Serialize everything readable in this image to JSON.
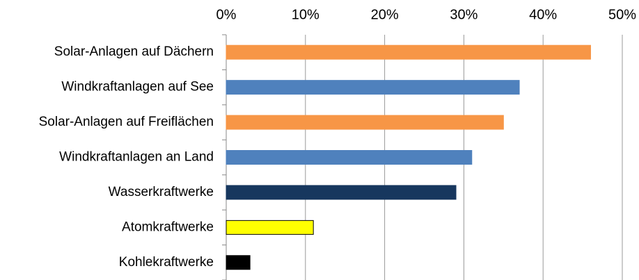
{
  "chart_data": {
    "type": "barh",
    "categories": [
      "Solar-Anlagen auf Dächern",
      "Windkraftanlagen auf See",
      "Solar-Anlagen auf Freiflächen",
      "Windkraftanlagen an Land",
      "Wasserkraftwerke",
      "Atomkraftwerke",
      "Kohlekraftwerke"
    ],
    "values": [
      46,
      37,
      35,
      31,
      29,
      11,
      3
    ],
    "colors": [
      "#f79646",
      "#4f81bd",
      "#f79646",
      "#4f81bd",
      "#17375e",
      "#ffff00",
      "#000000"
    ],
    "edgecolors": [
      "#f79646",
      "#4f81bd",
      "#f79646",
      "#4f81bd",
      "#17375e",
      "#000000",
      "#000000"
    ],
    "xlim": [
      0,
      50
    ],
    "xticks": [
      {
        "value": 0,
        "label": "0%"
      },
      {
        "value": 10,
        "label": "10%"
      },
      {
        "value": 20,
        "label": "20%"
      },
      {
        "value": 30,
        "label": "30%"
      },
      {
        "value": 40,
        "label": "40%"
      },
      {
        "value": 50,
        "label": "50%"
      }
    ],
    "grid": true
  }
}
